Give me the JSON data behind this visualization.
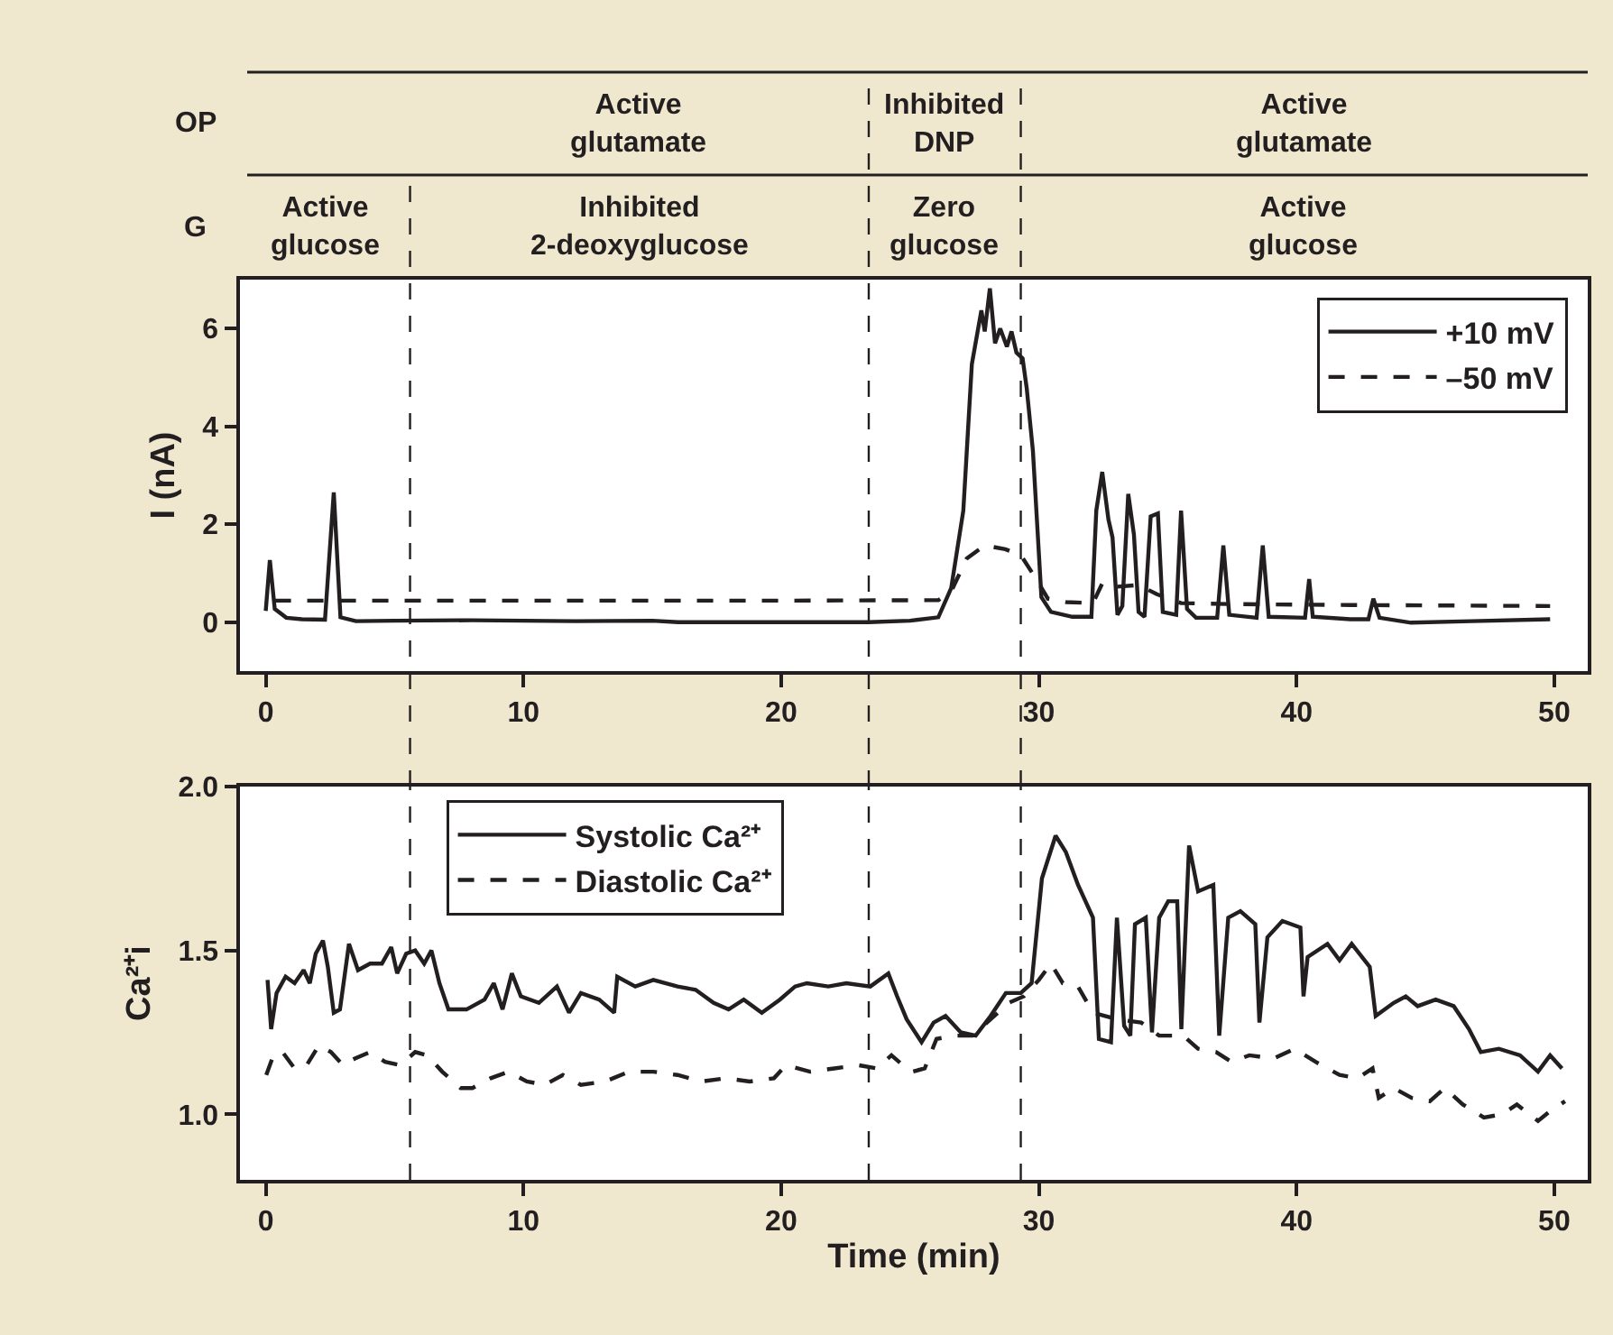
{
  "chart_data": [
    {
      "type": "line",
      "ylabel": "I (nA)",
      "xlim": [
        -1,
        51.3
      ],
      "xticks": [
        0,
        10,
        20,
        30,
        40,
        50
      ],
      "ylim": [
        -1,
        7
      ],
      "yticks": [
        0,
        2,
        4,
        6
      ],
      "legend": "top right",
      "marker": "none",
      "ref_lines": [
        {
          "axis": "x",
          "value": 5.6,
          "color": "#231f20",
          "line_style": "dashed"
        },
        {
          "axis": "x",
          "value": 23.4,
          "color": "#231f20",
          "line_style": "dashed"
        },
        {
          "axis": "x",
          "value": 29.3,
          "color": "#231f20",
          "line_style": "dashed"
        }
      ],
      "annotations": [
        "OP",
        "G",
        "Active\nglutamate",
        "Inhibited\nDNP",
        "Active\nglutamate",
        "Active\nglucose",
        "Inhibited\n2-deoxyglucose",
        "Zero\nglucose",
        "Active\nglucose"
      ],
      "series": [
        {
          "name": "+10 mV",
          "color": "#231f20",
          "line_style": "solid",
          "x": [
            0,
            0.16,
            0.35,
            0.8,
            1.4,
            2.3,
            2.64,
            2.9,
            3.5,
            5,
            8,
            12,
            15,
            16,
            20,
            23.4,
            25,
            26.1,
            26.6,
            27.07,
            27.4,
            27.77,
            27.9,
            28.1,
            28.3,
            28.5,
            28.76,
            28.94,
            29.13,
            29.37,
            29.53,
            29.77,
            30.1,
            30.47,
            31.3,
            32.04,
            32.23,
            32.46,
            32.7,
            32.86,
            33.05,
            33.24,
            33.47,
            33.69,
            33.87,
            34.1,
            34.34,
            34.62,
            34.81,
            35.33,
            35.52,
            35.75,
            36.1,
            36.92,
            37.16,
            37.39,
            38.45,
            38.69,
            38.92,
            40.33,
            40.49,
            40.63,
            42.09,
            42.79,
            42.98,
            43.22,
            44.44,
            46.8,
            49.84
          ],
          "values": [
            0.23,
            1.27,
            0.27,
            0.09,
            0.06,
            0.05,
            2.65,
            0.1,
            0.02,
            0.03,
            0.04,
            0.02,
            0.03,
            0,
            0,
            0,
            0.03,
            0.1,
            0.7,
            2.28,
            5.27,
            6.37,
            5.94,
            6.82,
            5.7,
            6.0,
            5.63,
            5.94,
            5.51,
            5.39,
            4.78,
            3.5,
            0.51,
            0.21,
            0.11,
            0.11,
            2.28,
            3.07,
            2.1,
            1.73,
            0.15,
            0.33,
            2.62,
            1.79,
            0.21,
            0.11,
            2.16,
            2.22,
            0.21,
            0.15,
            2.28,
            0.27,
            0.09,
            0.09,
            1.57,
            0.15,
            0.09,
            1.57,
            0.11,
            0.09,
            0.88,
            0.11,
            0.06,
            0.06,
            0.48,
            0.09,
            -0.01,
            0.02,
            0.06
          ]
        },
        {
          "name": "–50 mV",
          "color": "#231f20",
          "line_style": "dashed",
          "x": [
            0.35,
            10,
            20,
            26.1,
            26.6,
            27.2,
            27.9,
            28.7,
            29.3,
            29.9,
            30.35,
            31.06,
            32.1,
            32.46,
            32.93,
            33.87,
            34.58,
            35.52,
            37.4,
            42.1,
            49.84
          ],
          "values": [
            0.44,
            0.44,
            0.44,
            0.45,
            0.63,
            1.3,
            1.57,
            1.49,
            1.37,
            0.88,
            0.48,
            0.41,
            0.39,
            0.79,
            0.72,
            0.76,
            0.57,
            0.39,
            0.37,
            0.35,
            0.33
          ]
        }
      ]
    },
    {
      "type": "line",
      "xlabel": "Time (min)",
      "ylabel": "Ca²⁺i",
      "xlim": [
        -1,
        51.3
      ],
      "xticks": [
        0,
        10,
        20,
        30,
        40,
        50
      ],
      "ylim": [
        0.8,
        2.0
      ],
      "yticks": [
        {
          "value": 1,
          "label": "1.0"
        },
        {
          "value": 1.5,
          "label": "1.5"
        },
        {
          "value": 2,
          "label": "2.0"
        }
      ],
      "legend": "top left",
      "marker": "none",
      "ref_lines": [
        {
          "axis": "x",
          "value": 5.6,
          "color": "#231f20",
          "line_style": "dashed"
        },
        {
          "axis": "x",
          "value": 23.4,
          "color": "#231f20",
          "line_style": "dashed"
        },
        {
          "axis": "x",
          "value": 29.3,
          "color": "#231f20",
          "line_style": "dashed"
        }
      ],
      "series": [
        {
          "name": "Systolic Ca²⁺",
          "color": "#231f20",
          "line_style": "solid",
          "x": [
            0.07,
            0.21,
            0.42,
            0.77,
            1.12,
            1.47,
            1.71,
            1.94,
            2.22,
            2.41,
            2.64,
            2.88,
            3.23,
            3.58,
            4.05,
            4.51,
            4.87,
            5.1,
            5.45,
            5.8,
            6.15,
            6.43,
            6.74,
            7.09,
            7.79,
            8.49,
            8.85,
            9.19,
            9.55,
            9.9,
            10.6,
            11.3,
            11.77,
            12.23,
            12.94,
            13.52,
            13.64,
            14.34,
            15.04,
            15.98,
            16.68,
            17.38,
            17.96,
            18.55,
            19.25,
            19.95,
            20.54,
            21.0,
            21.83,
            22.53,
            23.46,
            24.16,
            24.5,
            24.87,
            25.45,
            25.92,
            26.38,
            26.97,
            27.55,
            28.13,
            28.72,
            29.3,
            29.72,
            30.12,
            30.65,
            31.05,
            31.52,
            32.1,
            32.33,
            32.8,
            33.03,
            33.31,
            33.55,
            33.73,
            34.15,
            34.39,
            34.67,
            35.02,
            35.37,
            35.53,
            35.83,
            36.18,
            36.77,
            37.0,
            37.35,
            37.82,
            38.4,
            38.56,
            38.87,
            39.45,
            40.15,
            40.27,
            40.43,
            41.2,
            41.67,
            42.14,
            42.84,
            43.07,
            43.77,
            44.24,
            44.7,
            45.4,
            46.1,
            46.69,
            47.15,
            47.85,
            48.67,
            49.37,
            49.84,
            50.3
          ],
          "values": [
            1.41,
            1.26,
            1.37,
            1.42,
            1.4,
            1.44,
            1.4,
            1.49,
            1.53,
            1.45,
            1.31,
            1.32,
            1.52,
            1.44,
            1.46,
            1.46,
            1.51,
            1.43,
            1.49,
            1.5,
            1.46,
            1.5,
            1.4,
            1.32,
            1.32,
            1.35,
            1.4,
            1.32,
            1.43,
            1.36,
            1.34,
            1.39,
            1.31,
            1.37,
            1.35,
            1.31,
            1.42,
            1.39,
            1.41,
            1.39,
            1.38,
            1.34,
            1.32,
            1.35,
            1.31,
            1.35,
            1.39,
            1.4,
            1.39,
            1.4,
            1.39,
            1.43,
            1.36,
            1.29,
            1.22,
            1.28,
            1.3,
            1.25,
            1.24,
            1.3,
            1.37,
            1.37,
            1.4,
            1.72,
            1.85,
            1.8,
            1.7,
            1.6,
            1.23,
            1.22,
            1.6,
            1.27,
            1.24,
            1.58,
            1.6,
            1.25,
            1.6,
            1.65,
            1.65,
            1.26,
            1.82,
            1.68,
            1.7,
            1.24,
            1.6,
            1.62,
            1.58,
            1.28,
            1.54,
            1.59,
            1.57,
            1.36,
            1.48,
            1.52,
            1.47,
            1.52,
            1.45,
            1.3,
            1.34,
            1.36,
            1.33,
            1.35,
            1.33,
            1.26,
            1.19,
            1.2,
            1.18,
            1.13,
            1.18,
            1.14
          ]
        },
        {
          "name": "Diastolic Ca²⁺",
          "color": "#231f20",
          "line_style": "dashed",
          "x": [
            0.02,
            0.3,
            0.65,
            1.12,
            1.59,
            2.06,
            2.53,
            3.0,
            3.46,
            4.05,
            4.63,
            5.22,
            5.8,
            6.27,
            6.85,
            7.56,
            8.02,
            8.73,
            9.43,
            10.13,
            10.83,
            11.53,
            12.23,
            13.17,
            14.1,
            15.04,
            15.98,
            16.91,
            17.85,
            18.78,
            19.72,
            20.19,
            21.12,
            22.06,
            23.0,
            23.7,
            24.28,
            24.87,
            25.1,
            25.57,
            26.03,
            26.73,
            27.43,
            28.13,
            28.83,
            29.42,
            30.0,
            30.47,
            30.93,
            31.52,
            32.1,
            33.03,
            33.97,
            34.67,
            35.6,
            36.18,
            36.88,
            37.47,
            38.17,
            39.1,
            39.92,
            40.74,
            41.67,
            42.37,
            42.95,
            43.19,
            43.77,
            44.47,
            45.17,
            45.75,
            46.45,
            47.27,
            47.97,
            48.55,
            49.37,
            49.84,
            50.42
          ],
          "values": [
            1.12,
            1.18,
            1.19,
            1.14,
            1.15,
            1.21,
            1.19,
            1.15,
            1.17,
            1.19,
            1.16,
            1.15,
            1.19,
            1.18,
            1.13,
            1.08,
            1.08,
            1.11,
            1.13,
            1.1,
            1.09,
            1.12,
            1.09,
            1.1,
            1.13,
            1.13,
            1.12,
            1.1,
            1.11,
            1.1,
            1.11,
            1.15,
            1.13,
            1.14,
            1.15,
            1.14,
            1.18,
            1.14,
            1.13,
            1.14,
            1.23,
            1.24,
            1.24,
            1.29,
            1.34,
            1.36,
            1.41,
            1.46,
            1.4,
            1.39,
            1.31,
            1.29,
            1.28,
            1.24,
            1.24,
            1.2,
            1.19,
            1.16,
            1.18,
            1.17,
            1.2,
            1.16,
            1.12,
            1.11,
            1.14,
            1.05,
            1.08,
            1.05,
            1.04,
            1.08,
            1.03,
            0.99,
            1.0,
            1.03,
            0.98,
            1.01,
            1.04
          ]
        }
      ]
    }
  ]
}
